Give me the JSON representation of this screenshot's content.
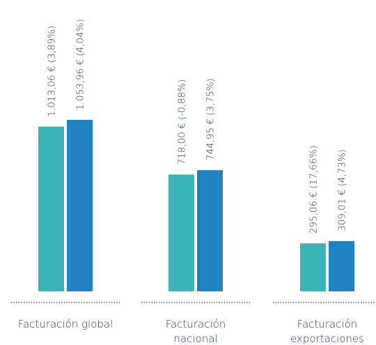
{
  "chart_data": {
    "type": "bar",
    "categories": [
      [
        "Facturación global"
      ],
      [
        "Facturación",
        "nacional"
      ],
      [
        "Facturación",
        "exportaciones"
      ]
    ],
    "series": [
      {
        "values": [
          1013.06,
          718.0,
          295.06
        ],
        "labels": [
          "1.013,06 € (3,89%)",
          "718,00 € (-0,88%)",
          "295,06 € (17,66%)"
        ],
        "color": "#3bb5b8"
      },
      {
        "values": [
          1053.96,
          744.95,
          309.01
        ],
        "labels": [
          "1.053,96 € (4,04%)",
          "744,95 € (3,75%)",
          "309,01 € (4,73%)"
        ],
        "color": "#1f82c2"
      }
    ],
    "title": "",
    "xlabel": "",
    "ylabel": "",
    "ylim": [
      0,
      1053.96
    ],
    "grid": false,
    "legend": "none",
    "separator_color": "#4a4a4a",
    "text_color": "#2f3a55"
  }
}
